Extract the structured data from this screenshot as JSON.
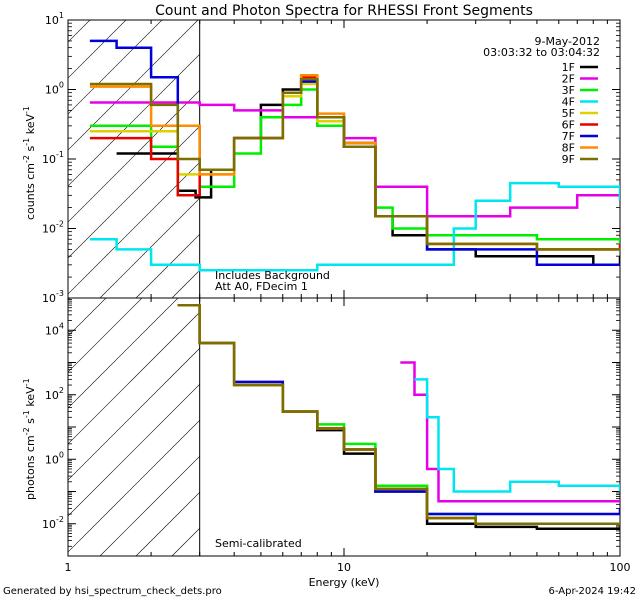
{
  "title": "Count and Photon Spectra for RHESSI Front Segments",
  "date": "9-May-2012",
  "time_range": "03:03:32 to 03:04:32",
  "xlabel": "Energy (keV)",
  "footer_left": "Generated by hsi_spectrum_check_dets.pro",
  "footer_right": "6-Apr-2024 19:42",
  "top_note_1": "Includes Background",
  "top_note_2": "Att A0, FDecim 1",
  "bottom_note": "Semi-calibrated",
  "colors": {
    "1F": "#000000",
    "2F": "#e600e6",
    "3F": "#00ee00",
    "4F": "#00e6f0",
    "5F": "#dcd200",
    "6F": "#e60000",
    "7F": "#0000dc",
    "8F": "#ff8c00",
    "9F": "#7d6e00"
  },
  "chart_data": [
    {
      "type": "line",
      "panel": "top",
      "ylabel": "counts cm^-2 s^-1 keV^-1",
      "xscale": "log",
      "yscale": "log",
      "xlim": [
        1,
        100
      ],
      "ylim": [
        0.001,
        10
      ],
      "x_ticks": [
        "1",
        "10",
        "100"
      ],
      "y_ticks": [
        "10^-3",
        "10^-2",
        "10^-1",
        "10^0",
        "10^1"
      ],
      "shaded_region": [
        1,
        3
      ],
      "legend": [
        "1F",
        "2F",
        "3F",
        "4F",
        "5F",
        "6F",
        "7F",
        "8F",
        "9F"
      ],
      "series": [
        {
          "name": "1F",
          "x": [
            1.5,
            2.5,
            2.9,
            3.3,
            4,
            5,
            6,
            7,
            8,
            10,
            13,
            15,
            20,
            30,
            50,
            80,
            100
          ],
          "y": [
            0.12,
            0.035,
            0.028,
            0.07,
            0.2,
            0.6,
            1.0,
            1.4,
            0.4,
            0.17,
            0.015,
            0.008,
            0.005,
            0.004,
            0.004,
            0.003,
            0.004
          ]
        },
        {
          "name": "2F",
          "x": [
            1.2,
            3,
            4,
            6,
            8,
            10,
            13,
            20,
            40,
            70,
            100
          ],
          "y": [
            0.65,
            0.6,
            0.5,
            0.4,
            0.3,
            0.2,
            0.04,
            0.015,
            0.02,
            0.03,
            0.025
          ]
        },
        {
          "name": "3F",
          "x": [
            1.2,
            2,
            2.5,
            3,
            4,
            5,
            6,
            7,
            8,
            10,
            13,
            15,
            20,
            50,
            100
          ],
          "y": [
            0.3,
            0.15,
            0.03,
            0.04,
            0.12,
            0.4,
            0.6,
            1.0,
            0.3,
            0.15,
            0.02,
            0.01,
            0.008,
            0.007,
            0.006
          ]
        },
        {
          "name": "4F",
          "x": [
            1.2,
            1.5,
            2,
            3,
            8,
            15,
            25,
            30,
            40,
            60,
            100
          ],
          "y": [
            0.007,
            0.005,
            0.003,
            0.0025,
            0.003,
            0.003,
            0.01,
            0.025,
            0.045,
            0.04,
            0.025
          ]
        },
        {
          "name": "5F",
          "x": [
            1.2,
            2.5,
            3,
            4,
            6,
            7,
            8,
            10,
            13,
            20,
            50,
            100
          ],
          "y": [
            0.25,
            0.06,
            0.06,
            0.2,
            0.8,
            1.2,
            0.35,
            0.15,
            0.015,
            0.006,
            0.005,
            0.005
          ]
        },
        {
          "name": "6F",
          "x": [
            1.2,
            2,
            2.5,
            3,
            4,
            6,
            7,
            8,
            10,
            13,
            20,
            50,
            100
          ],
          "y": [
            0.2,
            0.1,
            0.03,
            0.07,
            0.2,
            0.9,
            1.5,
            0.4,
            0.15,
            0.015,
            0.006,
            0.005,
            0.006
          ]
        },
        {
          "name": "7F",
          "x": [
            1.2,
            1.5,
            2,
            2.5,
            3,
            4,
            6,
            7,
            8,
            10,
            13,
            20,
            50,
            100
          ],
          "y": [
            5,
            4,
            1.5,
            0.3,
            0.07,
            0.2,
            0.9,
            1.3,
            0.4,
            0.15,
            0.015,
            0.005,
            0.003,
            0.003
          ]
        },
        {
          "name": "8F",
          "x": [
            1.2,
            2,
            3,
            4,
            6,
            7,
            8,
            10,
            13,
            20,
            50,
            100
          ],
          "y": [
            1.1,
            0.3,
            0.06,
            0.2,
            0.9,
            1.6,
            0.45,
            0.17,
            0.015,
            0.006,
            0.005,
            0.005
          ]
        },
        {
          "name": "9F",
          "x": [
            1.2,
            2,
            2.5,
            3,
            4,
            6,
            7,
            8,
            10,
            13,
            20,
            50,
            100
          ],
          "y": [
            1.2,
            0.6,
            0.1,
            0.07,
            0.2,
            0.9,
            1.4,
            0.4,
            0.15,
            0.015,
            0.006,
            0.005,
            0.005
          ]
        }
      ]
    },
    {
      "type": "line",
      "panel": "bottom",
      "ylabel": "photons cm^-2 s^-1 keV^-1",
      "xscale": "log",
      "yscale": "log",
      "xlim": [
        1,
        100
      ],
      "ylim": [
        0.001,
        100000
      ],
      "x_ticks": [
        "1",
        "10",
        "100"
      ],
      "y_ticks": [
        "10^-2",
        "10^0",
        "10^2",
        "10^4"
      ],
      "shaded_region": [
        1,
        3
      ],
      "series": [
        {
          "name": "1F",
          "x": [
            2.5,
            3,
            4,
            6,
            8,
            10,
            13,
            20,
            30,
            50,
            100
          ],
          "y": [
            60000,
            4000,
            200,
            30,
            8,
            1.5,
            0.1,
            0.01,
            0.008,
            0.007,
            0.007
          ]
        },
        {
          "name": "2F",
          "x": [
            16,
            18,
            20,
            22,
            25,
            40,
            100
          ],
          "y": [
            1000,
            100,
            0.5,
            0.05,
            0.05,
            0.05,
            0.05
          ]
        },
        {
          "name": "3F",
          "x": [
            2.5,
            3,
            4,
            6,
            8,
            10,
            13,
            20,
            30,
            50,
            100
          ],
          "y": [
            60000,
            4000,
            200,
            30,
            12,
            3,
            0.15,
            0.02,
            0.01,
            0.01,
            0.01
          ]
        },
        {
          "name": "4F",
          "x": [
            18,
            20,
            22,
            25,
            40,
            60,
            100
          ],
          "y": [
            300,
            20,
            0.5,
            0.1,
            0.2,
            0.15,
            0.1
          ]
        },
        {
          "name": "5F",
          "x": [
            2.5,
            3,
            4,
            6,
            8,
            10,
            13,
            20,
            30,
            50,
            100
          ],
          "y": [
            60000,
            4000,
            200,
            30,
            9,
            2,
            0.12,
            0.015,
            0.01,
            0.01,
            0.01
          ]
        },
        {
          "name": "6F",
          "x": [
            2.5,
            3,
            4,
            6,
            8,
            10,
            13,
            20,
            30,
            50,
            100
          ],
          "y": [
            60000,
            4000,
            200,
            30,
            9,
            2,
            0.12,
            0.015,
            0.01,
            0.01,
            0.01
          ]
        },
        {
          "name": "7F",
          "x": [
            2.5,
            3,
            4,
            6,
            8,
            10,
            13,
            20,
            30,
            50,
            100
          ],
          "y": [
            60000,
            4000,
            250,
            30,
            9,
            2,
            0.1,
            0.02,
            0.02,
            0.02,
            0.03
          ]
        },
        {
          "name": "8F",
          "x": [
            2.5,
            3,
            4,
            6,
            8,
            10,
            13,
            20,
            30,
            50,
            100
          ],
          "y": [
            60000,
            4000,
            200,
            30,
            9,
            2,
            0.12,
            0.015,
            0.01,
            0.01,
            0.01
          ]
        },
        {
          "name": "9F",
          "x": [
            2.5,
            3,
            4,
            6,
            8,
            10,
            13,
            20,
            30,
            50,
            100
          ],
          "y": [
            60000,
            4000,
            200,
            30,
            9,
            2,
            0.12,
            0.015,
            0.01,
            0.01,
            0.01
          ]
        }
      ]
    }
  ]
}
